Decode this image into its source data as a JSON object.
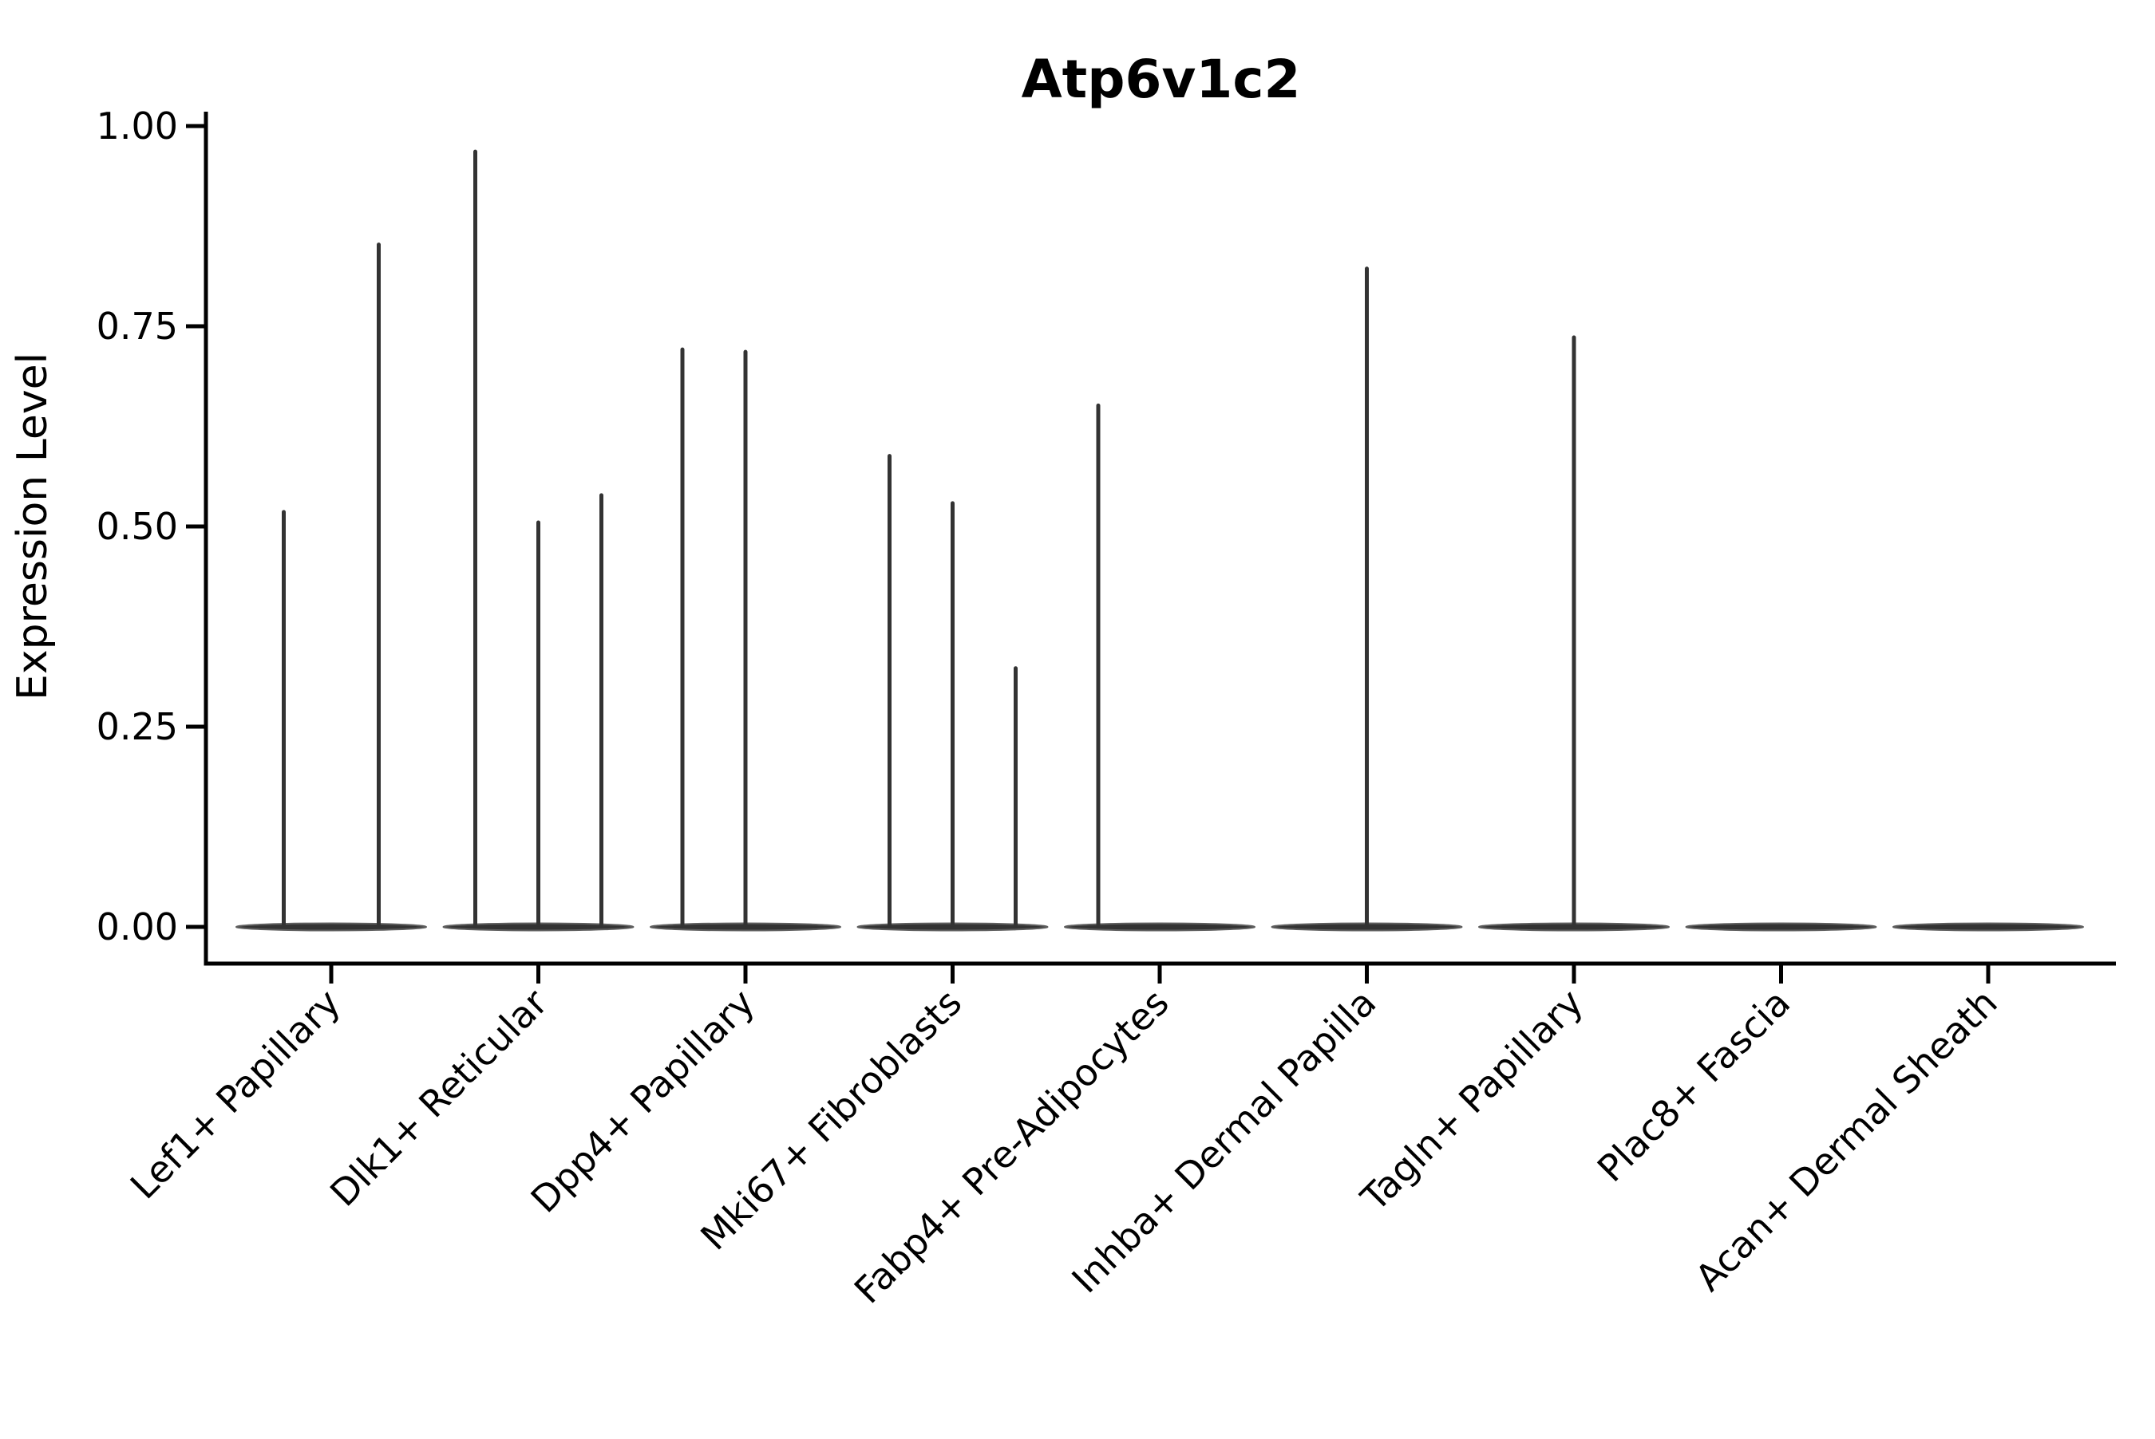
{
  "chart_data": {
    "type": "violin",
    "title": "Atp6v1c2",
    "xlabel": "",
    "ylabel": "Expression Level",
    "ylim": [
      0.0,
      1.0
    ],
    "yticks": [
      0.0,
      0.25,
      0.5,
      0.75,
      1.0
    ],
    "grid": false,
    "legend": "none",
    "axis_color": "#000000",
    "text_color": "#000000",
    "violin_fill": "#333333",
    "violin_edge": "#5f5f5f",
    "categories": [
      {
        "label": "Lef1+ Papillary",
        "spikes": [
          {
            "dx": -59.5,
            "value": 0.518
          },
          {
            "dx": 59.5,
            "value": 0.852
          }
        ]
      },
      {
        "label": "Dlk1+ Reticular",
        "spikes": [
          {
            "dx": -79,
            "value": 0.968
          },
          {
            "dx": 0,
            "value": 0.505
          },
          {
            "dx": 79,
            "value": 0.539
          }
        ]
      },
      {
        "label": "Dpp4+ Papillary",
        "spikes": [
          {
            "dx": -79,
            "value": 0.721
          },
          {
            "dx": 0,
            "value": 0.718
          }
        ]
      },
      {
        "label": "Mki67+ Fibroblasts",
        "spikes": [
          {
            "dx": -79,
            "value": 0.588
          },
          {
            "dx": 0,
            "value": 0.529
          },
          {
            "dx": 79,
            "value": 0.323
          }
        ]
      },
      {
        "label": "Fabp4+ Pre-Adipocytes",
        "spikes": [
          {
            "dx": -77,
            "value": 0.651
          }
        ]
      },
      {
        "label": "Inhba+ Dermal Papilla",
        "spikes": [
          {
            "dx": 0,
            "value": 0.822
          }
        ]
      },
      {
        "label": "Tagln+ Papillary",
        "spikes": [
          {
            "dx": 0,
            "value": 0.736
          }
        ]
      },
      {
        "label": "Plac8+ Fascia",
        "spikes": []
      },
      {
        "label": "Acan+ Dermal Sheath",
        "spikes": []
      }
    ]
  }
}
